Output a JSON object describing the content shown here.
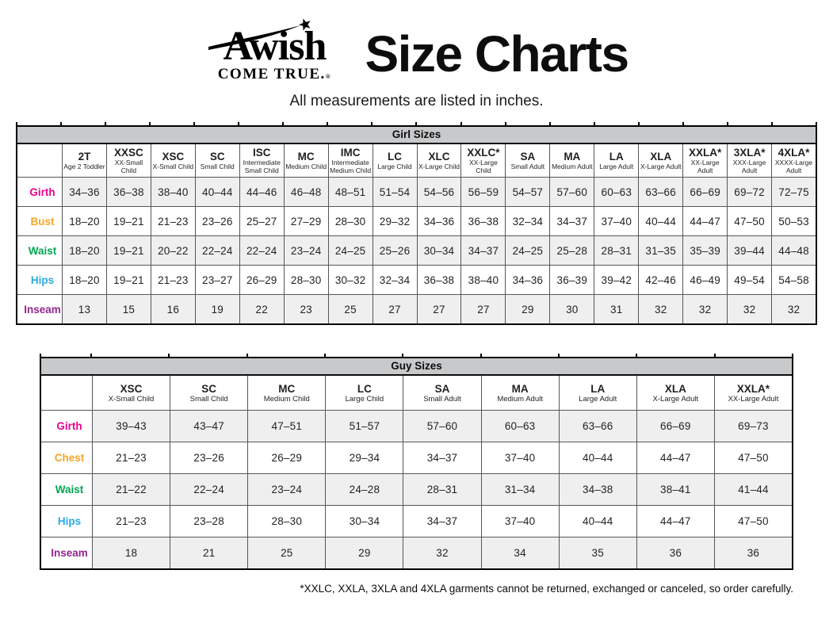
{
  "logo": {
    "line1": "Awish",
    "line2": "COME TRUE.",
    "registered": "®"
  },
  "title": "Size Charts",
  "subtitle": "All measurements are listed in inches.",
  "footnote": "*XXLC, XXLA, 3XLA and 4XLA garments cannot be returned, exchanged or canceled, so order carefully.",
  "colors": {
    "girth": "#EC008C",
    "bust_chest": "#F7A623",
    "waist": "#00A651",
    "hips": "#29ABE2",
    "inseam": "#92278F",
    "title_bar_bg": "#C8C9CB",
    "stripe_bg": "#EFEFEF"
  },
  "girl_table": {
    "title": "Girl Sizes",
    "columns": [
      {
        "code": "2T",
        "desc": "Age 2 Toddler"
      },
      {
        "code": "XXSC",
        "desc": "XX-Small Child"
      },
      {
        "code": "XSC",
        "desc": "X-Small Child"
      },
      {
        "code": "SC",
        "desc": "Small Child"
      },
      {
        "code": "ISC",
        "desc": "Intermediate Small Child"
      },
      {
        "code": "MC",
        "desc": "Medium Child"
      },
      {
        "code": "IMC",
        "desc": "Intermediate Medium Child"
      },
      {
        "code": "LC",
        "desc": "Large Child"
      },
      {
        "code": "XLC",
        "desc": "X-Large Child"
      },
      {
        "code": "XXLC*",
        "desc": "XX-Large Child"
      },
      {
        "code": "SA",
        "desc": "Small Adult"
      },
      {
        "code": "MA",
        "desc": "Medium Adult"
      },
      {
        "code": "LA",
        "desc": "Large Adult"
      },
      {
        "code": "XLA",
        "desc": "X-Large Adult"
      },
      {
        "code": "XXLA*",
        "desc": "XX-Large Adult"
      },
      {
        "code": "3XLA*",
        "desc": "XXX-Large Adult"
      },
      {
        "code": "4XLA*",
        "desc": "XXXX-Large Adult"
      }
    ],
    "rows": [
      {
        "label": "Girth",
        "color": "#EC008C",
        "values": [
          "34–36",
          "36–38",
          "38–40",
          "40–44",
          "44–46",
          "46–48",
          "48–51",
          "51–54",
          "54–56",
          "56–59",
          "54–57",
          "57–60",
          "60–63",
          "63–66",
          "66–69",
          "69–72",
          "72–75"
        ]
      },
      {
        "label": "Bust",
        "color": "#F7A623",
        "values": [
          "18–20",
          "19–21",
          "21–23",
          "23–26",
          "25–27",
          "27–29",
          "28–30",
          "29–32",
          "34–36",
          "36–38",
          "32–34",
          "34–37",
          "37–40",
          "40–44",
          "44–47",
          "47–50",
          "50–53"
        ]
      },
      {
        "label": "Waist",
        "color": "#00A651",
        "values": [
          "18–20",
          "19–21",
          "20–22",
          "22–24",
          "22–24",
          "23–24",
          "24–25",
          "25–26",
          "30–34",
          "34–37",
          "24–25",
          "25–28",
          "28–31",
          "31–35",
          "35–39",
          "39–44",
          "44–48"
        ]
      },
      {
        "label": "Hips",
        "color": "#29ABE2",
        "values": [
          "18–20",
          "19–21",
          "21–23",
          "23–27",
          "26–29",
          "28–30",
          "30–32",
          "32–34",
          "36–38",
          "38–40",
          "34–36",
          "36–39",
          "39–42",
          "42–46",
          "46–49",
          "49–54",
          "54–58"
        ]
      },
      {
        "label": "Inseam",
        "color": "#92278F",
        "values": [
          "13",
          "15",
          "16",
          "19",
          "22",
          "23",
          "25",
          "27",
          "27",
          "27",
          "29",
          "30",
          "31",
          "32",
          "32",
          "32",
          "32"
        ]
      }
    ]
  },
  "guy_table": {
    "title": "Guy Sizes",
    "columns": [
      {
        "code": "XSC",
        "desc": "X-Small Child"
      },
      {
        "code": "SC",
        "desc": "Small Child"
      },
      {
        "code": "MC",
        "desc": "Medium Child"
      },
      {
        "code": "LC",
        "desc": "Large Child"
      },
      {
        "code": "SA",
        "desc": "Small Adult"
      },
      {
        "code": "MA",
        "desc": "Medium Adult"
      },
      {
        "code": "LA",
        "desc": "Large Adult"
      },
      {
        "code": "XLA",
        "desc": "X-Large Adult"
      },
      {
        "code": "XXLA*",
        "desc": "XX-Large Adult"
      }
    ],
    "rows": [
      {
        "label": "Girth",
        "color": "#EC008C",
        "values": [
          "39–43",
          "43–47",
          "47–51",
          "51–57",
          "57–60",
          "60–63",
          "63–66",
          "66–69",
          "69–73"
        ]
      },
      {
        "label": "Chest",
        "color": "#F7A623",
        "values": [
          "21–23",
          "23–26",
          "26–29",
          "29–34",
          "34–37",
          "37–40",
          "40–44",
          "44–47",
          "47–50"
        ]
      },
      {
        "label": "Waist",
        "color": "#00A651",
        "values": [
          "21–22",
          "22–24",
          "23–24",
          "24–28",
          "28–31",
          "31–34",
          "34–38",
          "38–41",
          "41–44"
        ]
      },
      {
        "label": "Hips",
        "color": "#29ABE2",
        "values": [
          "21–23",
          "23–28",
          "28–30",
          "30–34",
          "34–37",
          "37–40",
          "40–44",
          "44–47",
          "47–50"
        ]
      },
      {
        "label": "Inseam",
        "color": "#92278F",
        "values": [
          "18",
          "21",
          "25",
          "29",
          "32",
          "34",
          "35",
          "36",
          "36"
        ]
      }
    ]
  }
}
